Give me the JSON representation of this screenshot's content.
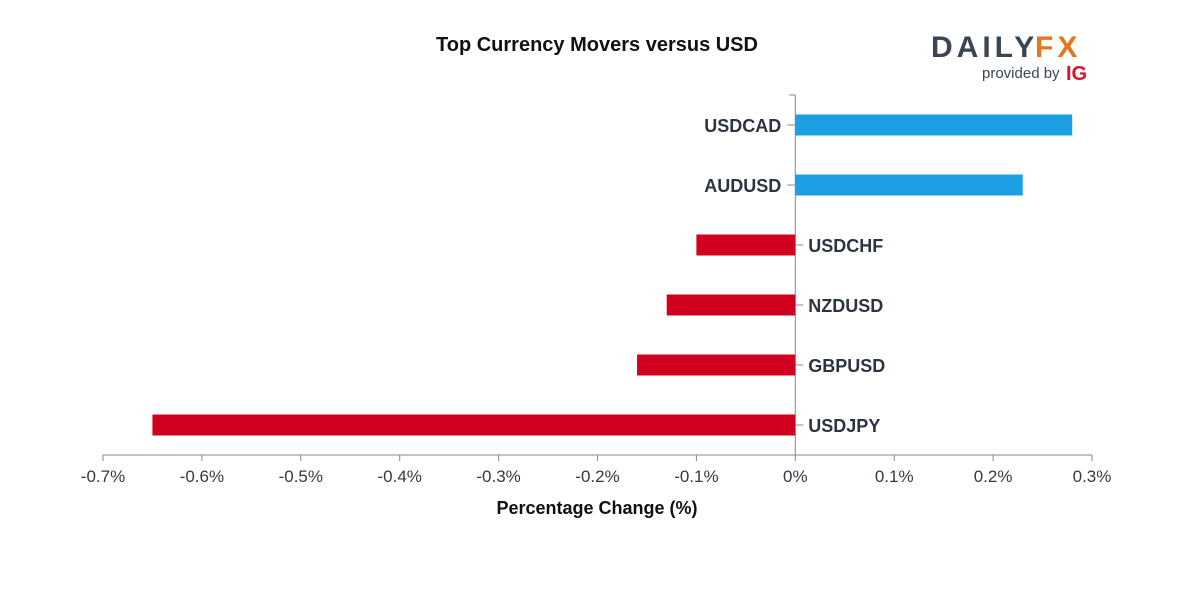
{
  "branding": {
    "logo_daily": "DAILY",
    "logo_fx": "FX",
    "provided_by": "provided by",
    "ig": "IG"
  },
  "chart_data": {
    "type": "bar",
    "orientation": "horizontal",
    "title": "Top Currency Movers versus USD",
    "xlabel": "Percentage Change (%)",
    "ylabel": "",
    "xlim": [
      -0.7,
      0.3
    ],
    "xticks": [
      -0.7,
      -0.6,
      -0.5,
      -0.4,
      -0.3,
      -0.2,
      -0.1,
      0,
      0.1,
      0.2,
      0.3
    ],
    "tick_labels": [
      "-0.7%",
      "-0.6%",
      "-0.5%",
      "-0.4%",
      "-0.3%",
      "-0.2%",
      "-0.1%",
      "0%",
      "0.1%",
      "0.2%",
      "0.3%"
    ],
    "categories": [
      "USDCAD",
      "AUDUSD",
      "USDCHF",
      "NZDUSD",
      "GBPUSD",
      "USDJPY"
    ],
    "values": [
      0.28,
      0.23,
      -0.1,
      -0.13,
      -0.16,
      -0.65
    ],
    "colors": {
      "positive": "#1d9fe6",
      "negative": "#d1001f",
      "axis": "#888888"
    },
    "grid": false,
    "legend": "none"
  }
}
